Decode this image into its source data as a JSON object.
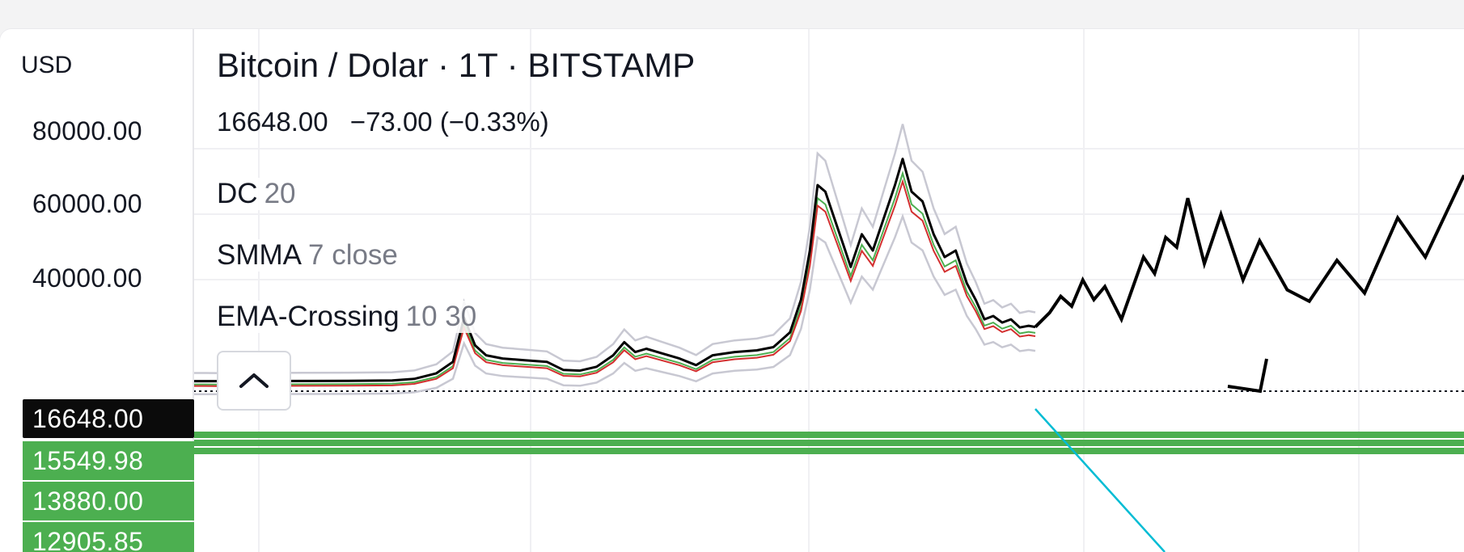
{
  "chart_data": {
    "type": "line",
    "title": "Bitcoin / Dolar · 1T · BITSTAMP",
    "quote": {
      "last": "16648.00",
      "change": "−73.00 (−0.33%)"
    },
    "currency": "USD",
    "indicators": [
      {
        "name": "DC",
        "params": "20"
      },
      {
        "name": "SMMA",
        "params": "7 close"
      },
      {
        "name": "EMA-Crossing",
        "params": "10 30"
      }
    ],
    "y_ticks": [
      "80000.00",
      "60000.00",
      "40000.00"
    ],
    "y_tick_values": [
      80000,
      60000,
      40000
    ],
    "price_tags": {
      "current": {
        "label": "16648.00",
        "value": 16648
      },
      "levels": [
        {
          "label": "15549.98",
          "value": 15549.98
        },
        {
          "label": "13880.00",
          "value": 13880
        },
        {
          "label": "12905.85",
          "value": 12905.85
        }
      ]
    },
    "series": [
      {
        "values": [
          [
            0,
            100
          ],
          [
            20,
            90
          ],
          [
            60,
            120
          ],
          [
            100,
            150
          ],
          [
            140,
            200
          ],
          [
            180,
            300
          ],
          [
            200,
            800
          ],
          [
            220,
            2500
          ],
          [
            235,
            6000
          ],
          [
            245,
            19500
          ],
          [
            255,
            11000
          ],
          [
            265,
            8000
          ],
          [
            280,
            7000
          ],
          [
            300,
            6500
          ],
          [
            320,
            6000
          ],
          [
            335,
            3500
          ],
          [
            350,
            3300
          ],
          [
            365,
            4500
          ],
          [
            380,
            8000
          ],
          [
            390,
            12000
          ],
          [
            400,
            9000
          ],
          [
            410,
            10000
          ],
          [
            425,
            8500
          ],
          [
            440,
            7000
          ],
          [
            455,
            5000
          ],
          [
            470,
            8000
          ],
          [
            490,
            9000
          ],
          [
            510,
            9500
          ],
          [
            525,
            10500
          ],
          [
            540,
            15000
          ],
          [
            550,
            25000
          ],
          [
            558,
            40000
          ],
          [
            565,
            60000
          ],
          [
            572,
            58000
          ],
          [
            580,
            50000
          ],
          [
            588,
            42000
          ],
          [
            595,
            35000
          ],
          [
            605,
            45000
          ],
          [
            615,
            40000
          ],
          [
            625,
            50000
          ],
          [
            635,
            60000
          ],
          [
            642,
            68000
          ],
          [
            650,
            58000
          ],
          [
            660,
            55000
          ],
          [
            670,
            45000
          ],
          [
            680,
            38000
          ],
          [
            690,
            40000
          ],
          [
            700,
            30000
          ],
          [
            708,
            25000
          ],
          [
            716,
            19000
          ],
          [
            724,
            20000
          ],
          [
            732,
            18000
          ],
          [
            740,
            19000
          ],
          [
            748,
            16500
          ],
          [
            756,
            17000
          ],
          [
            762,
            16648
          ]
        ]
      }
    ],
    "projection": [
      [
        762,
        16648
      ],
      [
        775,
        21000
      ],
      [
        785,
        26000
      ],
      [
        795,
        23000
      ],
      [
        805,
        31000
      ],
      [
        815,
        25000
      ],
      [
        825,
        29000
      ],
      [
        840,
        19000
      ],
      [
        860,
        38000
      ],
      [
        870,
        33000
      ],
      [
        880,
        44000
      ],
      [
        890,
        41000
      ],
      [
        900,
        56000
      ],
      [
        915,
        36000
      ],
      [
        930,
        51000
      ],
      [
        950,
        31000
      ],
      [
        965,
        43000
      ],
      [
        990,
        28000
      ],
      [
        1010,
        24500
      ],
      [
        1035,
        37000
      ],
      [
        1060,
        27000
      ],
      [
        1090,
        50000
      ],
      [
        1115,
        38000
      ],
      [
        1150,
        63000
      ]
    ],
    "colors": {
      "candles": "#000000",
      "smma": "#d32f2f",
      "ema": "#4caf50",
      "donchian": "#c8c8d2",
      "support": "#4caf50",
      "trendline": "#00bcd4",
      "grid": "#f0f0f3"
    }
  },
  "controls": {
    "collapse_icon": "chevron-up-icon"
  }
}
